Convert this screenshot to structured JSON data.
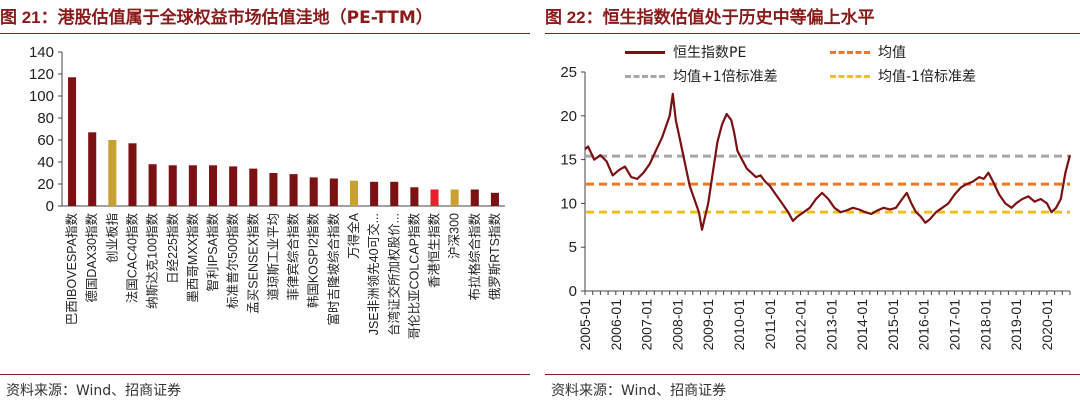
{
  "left": {
    "title_prefix": "图 21：",
    "title_text": "港股估值属于全球权益市场估值洼地（PE-TTM）",
    "source": "资料来源：Wind、招商证券",
    "colors": {
      "default": "#7b1113",
      "gold": "#c8a033",
      "red": "#e8202a"
    },
    "chart_data": {
      "type": "bar",
      "title": "港股估值属于全球权益市场估值洼地（PE-TTM）",
      "ylim": [
        0,
        140
      ],
      "yticks": [
        0,
        20,
        40,
        60,
        80,
        100,
        120,
        140
      ],
      "categories": [
        "巴西IBOVESPA指数",
        "德国DAX30指数",
        "创业板指",
        "法国CAC40指数",
        "纳斯达克100指数",
        "日经225指数",
        "墨西哥MXX指数",
        "智利IPSA指数",
        "标准普尔500指数",
        "孟买SENSEX指数",
        "道琼斯工业平均",
        "菲律宾综合指数",
        "韩国KOSPI2指数",
        "富时吉隆坡综合指数",
        "万得全A",
        "JSE非洲领先40可交...",
        "台湾证交所加权股价...",
        "哥伦比亚COLCAP指数",
        "香港恒生指数",
        "沪深300",
        "布拉格综合指数",
        "俄罗斯RTS指数"
      ],
      "values": [
        117,
        67,
        60,
        57,
        38,
        37,
        37,
        37,
        36,
        34,
        30,
        29,
        26,
        25,
        23,
        22,
        22,
        17,
        15,
        15,
        15,
        12
      ],
      "bar_colors": [
        "default",
        "default",
        "gold",
        "default",
        "default",
        "default",
        "default",
        "default",
        "default",
        "default",
        "default",
        "default",
        "default",
        "default",
        "gold",
        "default",
        "default",
        "default",
        "red",
        "gold",
        "default",
        "default"
      ]
    }
  },
  "right": {
    "title_prefix": "图 22：",
    "title_text": "恒生指数估值处于历史中等偏上水平",
    "source": "资料来源：Wind、招商证券",
    "legend": {
      "pe": "恒生指数PE",
      "mean": "均值",
      "plus": "均值+1倍标准差",
      "minus": "均值-1倍标准差"
    },
    "chart_data": {
      "type": "line",
      "ylim": [
        0,
        25
      ],
      "yticks": [
        0,
        5,
        10,
        15,
        20,
        25
      ],
      "xlabels": [
        "2005-01",
        "2006-01",
        "2007-01",
        "2008-01",
        "2009-01",
        "2010-01",
        "2011-01",
        "2012-01",
        "2013-01",
        "2014-01",
        "2015-01",
        "2016-01",
        "2017-01",
        "2018-01",
        "2019-01",
        "2020-01"
      ],
      "xlim": [
        2005.0,
        2020.75
      ],
      "series": [
        {
          "name": "恒生指数PE",
          "color": "#7b1113",
          "x": [
            2005.0,
            2005.1,
            2005.3,
            2005.5,
            2005.7,
            2005.9,
            2006.1,
            2006.3,
            2006.5,
            2006.7,
            2006.9,
            2007.1,
            2007.3,
            2007.5,
            2007.6,
            2007.75,
            2007.85,
            2007.95,
            2008.1,
            2008.25,
            2008.4,
            2008.55,
            2008.7,
            2008.8,
            2008.9,
            2009.0,
            2009.15,
            2009.3,
            2009.45,
            2009.6,
            2009.75,
            2009.85,
            2009.95,
            2010.1,
            2010.25,
            2010.4,
            2010.55,
            2010.7,
            2010.85,
            2011.0,
            2011.2,
            2011.4,
            2011.6,
            2011.75,
            2011.9,
            2012.1,
            2012.3,
            2012.5,
            2012.7,
            2012.9,
            2013.1,
            2013.3,
            2013.5,
            2013.7,
            2013.9,
            2014.1,
            2014.3,
            2014.5,
            2014.7,
            2014.9,
            2015.1,
            2015.3,
            2015.45,
            2015.6,
            2015.75,
            2015.9,
            2016.05,
            2016.2,
            2016.4,
            2016.6,
            2016.8,
            2017.0,
            2017.2,
            2017.4,
            2017.6,
            2017.8,
            2017.95,
            2018.1,
            2018.25,
            2018.45,
            2018.65,
            2018.85,
            2019.0,
            2019.2,
            2019.4,
            2019.6,
            2019.8,
            2020.0,
            2020.15,
            2020.3,
            2020.45,
            2020.6,
            2020.75
          ],
          "y": [
            16.2,
            16.5,
            15.0,
            15.5,
            14.8,
            13.2,
            13.8,
            14.2,
            13.0,
            12.8,
            13.5,
            14.5,
            16.0,
            17.5,
            18.5,
            20.0,
            22.5,
            19.5,
            17.0,
            14.5,
            12.0,
            10.5,
            9.0,
            7.0,
            8.5,
            10.0,
            13.5,
            17.0,
            19.0,
            20.2,
            19.5,
            18.0,
            16.0,
            15.0,
            14.0,
            13.5,
            13.0,
            13.2,
            12.5,
            12.0,
            11.0,
            10.0,
            9.0,
            8.0,
            8.5,
            9.0,
            9.5,
            10.5,
            11.2,
            10.5,
            9.5,
            9.0,
            9.2,
            9.5,
            9.3,
            9.0,
            8.8,
            9.2,
            9.5,
            9.3,
            9.5,
            10.5,
            11.2,
            10.0,
            9.0,
            8.5,
            7.8,
            8.2,
            9.0,
            9.5,
            10.0,
            11.0,
            11.8,
            12.2,
            12.5,
            13.0,
            12.8,
            13.5,
            12.5,
            11.0,
            10.0,
            9.5,
            10.0,
            10.5,
            10.8,
            10.2,
            10.5,
            10.0,
            9.0,
            9.5,
            10.5,
            13.5,
            15.5
          ]
        },
        {
          "name": "均值",
          "color": "#f07820",
          "value": 12.2
        },
        {
          "name": "均值+1倍标准差",
          "color": "#a8a8a8",
          "value": 15.4
        },
        {
          "name": "均值-1倍标准差",
          "color": "#f0c020",
          "value": 9.0
        }
      ]
    }
  }
}
